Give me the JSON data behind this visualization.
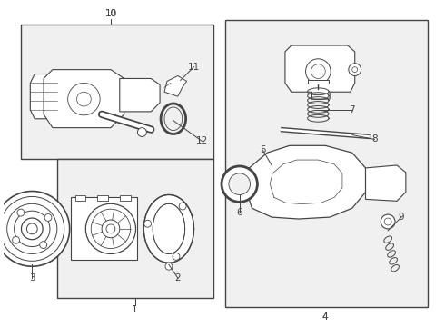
{
  "bg_color": "#ffffff",
  "box_fill": "#f0f0f0",
  "line_color": "#444444",
  "fig_width": 4.9,
  "fig_height": 3.6,
  "dpi": 100,
  "label_fontsize": 7.5
}
